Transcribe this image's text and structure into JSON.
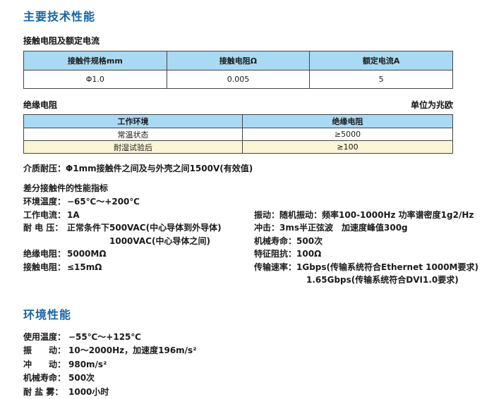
{
  "page": {
    "main_title": "主要技术性能"
  },
  "contact_section": {
    "heading": "接触电阻及额定电流",
    "table": {
      "headers": [
        "接触件规格mm",
        "接触电阻Ω",
        "额定电流A"
      ],
      "row": [
        "Φ1.0",
        "0.005",
        "5"
      ]
    }
  },
  "insulation_section": {
    "heading": "绝缘电阻",
    "unit_note": "单位为兆欧",
    "table": {
      "headers": [
        "工作环境",
        "绝缘电阻"
      ],
      "rows": [
        {
          "env": "常温状态",
          "value": "≥5000"
        },
        {
          "env": "耐湿试验后",
          "value": "≥100"
        }
      ]
    },
    "dielectric_withstand": {
      "label": "介质耐压：",
      "value": "Φ1mm接触件之间及与外壳之间1500V(有效值)"
    }
  },
  "differential_section": {
    "heading": "差分接触件的性能指标",
    "left_items": [
      {
        "label": "环境温度：",
        "value": "−65℃～+200℃"
      },
      {
        "label": "工作电流：",
        "value": "1A"
      },
      {
        "label": "耐 电 压：",
        "value": "正常条件下500VAC(中心导体到外导体)"
      },
      {
        "label": "",
        "value": "1000VAC(中心导体之间)"
      },
      {
        "label": "绝缘电阻：",
        "value": "5000MΩ"
      },
      {
        "label": "接触电阻：",
        "value": "≤15mΩ"
      }
    ],
    "right_items": [
      {
        "label": "振动：",
        "value": "随机振动：频率100-1000Hz 功率谱密度1g2/Hz"
      },
      {
        "label": "冲击：",
        "value": "3ms半正弦波　加速度峰值300g"
      },
      {
        "label": "机械寿命：",
        "value": "500次"
      },
      {
        "label": "特征阻抗：",
        "value": "100Ω"
      },
      {
        "label": "传输速率：",
        "value": "1Gbps(传输系统符合Ethernet 1000M要求)"
      },
      {
        "label": "",
        "value": "1.65Gbps(传输系统符合DVI1.0要求)"
      }
    ]
  },
  "environment_section": {
    "heading": "环境性能",
    "items": [
      {
        "label": "使用温度：",
        "value": "−55℃～+125℃"
      },
      {
        "label": "振　　动：",
        "value": "10～2000Hz，加速度196m/s²"
      },
      {
        "label": "冲　　动：",
        "value": "980m/s²"
      },
      {
        "label": "机械寿命：",
        "value": "500次"
      },
      {
        "label": "耐 盐 雾：",
        "value": "1000小时"
      }
    ]
  },
  "colors": {
    "heading_blue": "#1565a8",
    "table_header_blue": "#a9daf3",
    "row_yellow": "#faf6d5",
    "table_border": "#444444"
  }
}
